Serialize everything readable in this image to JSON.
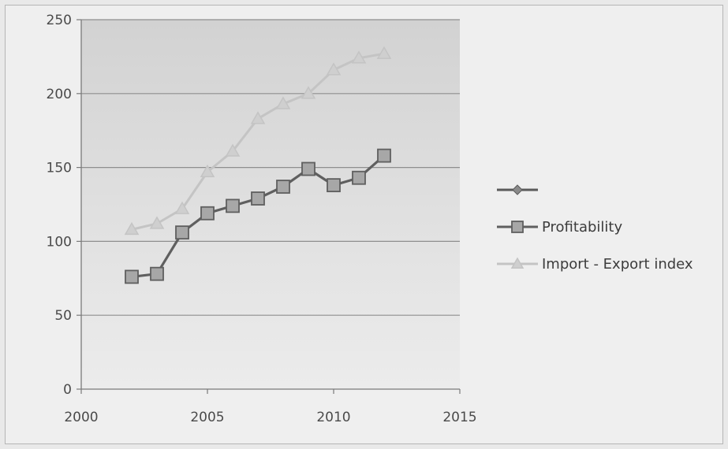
{
  "chart_data": {
    "type": "line",
    "x_ticks": [
      2000,
      2005,
      2010,
      2015
    ],
    "y_ticks": [
      0,
      50,
      100,
      150,
      200,
      250
    ],
    "xlim": [
      2000,
      2015
    ],
    "ylim": [
      0,
      250
    ],
    "grid": "horizontal",
    "legend_position": "right",
    "series": [
      {
        "name": "",
        "marker": "diamond",
        "color": "#5a5a5a",
        "x": [],
        "y": []
      },
      {
        "name": "Profitability",
        "marker": "square",
        "color": "#5f5f5f",
        "x": [
          2002,
          2003,
          2004,
          2005,
          2006,
          2007,
          2008,
          2009,
          2010,
          2011,
          2012
        ],
        "y": [
          76,
          78,
          106,
          119,
          124,
          129,
          137,
          149,
          138,
          143,
          158
        ]
      },
      {
        "name": "Import - Export index",
        "marker": "triangle",
        "color": "#c4c4c4",
        "x": [
          2002,
          2003,
          2004,
          2005,
          2006,
          2007,
          2008,
          2009,
          2010,
          2011,
          2012
        ],
        "y": [
          108,
          112,
          122,
          147,
          161,
          183,
          193,
          200,
          216,
          224,
          227
        ]
      }
    ]
  }
}
